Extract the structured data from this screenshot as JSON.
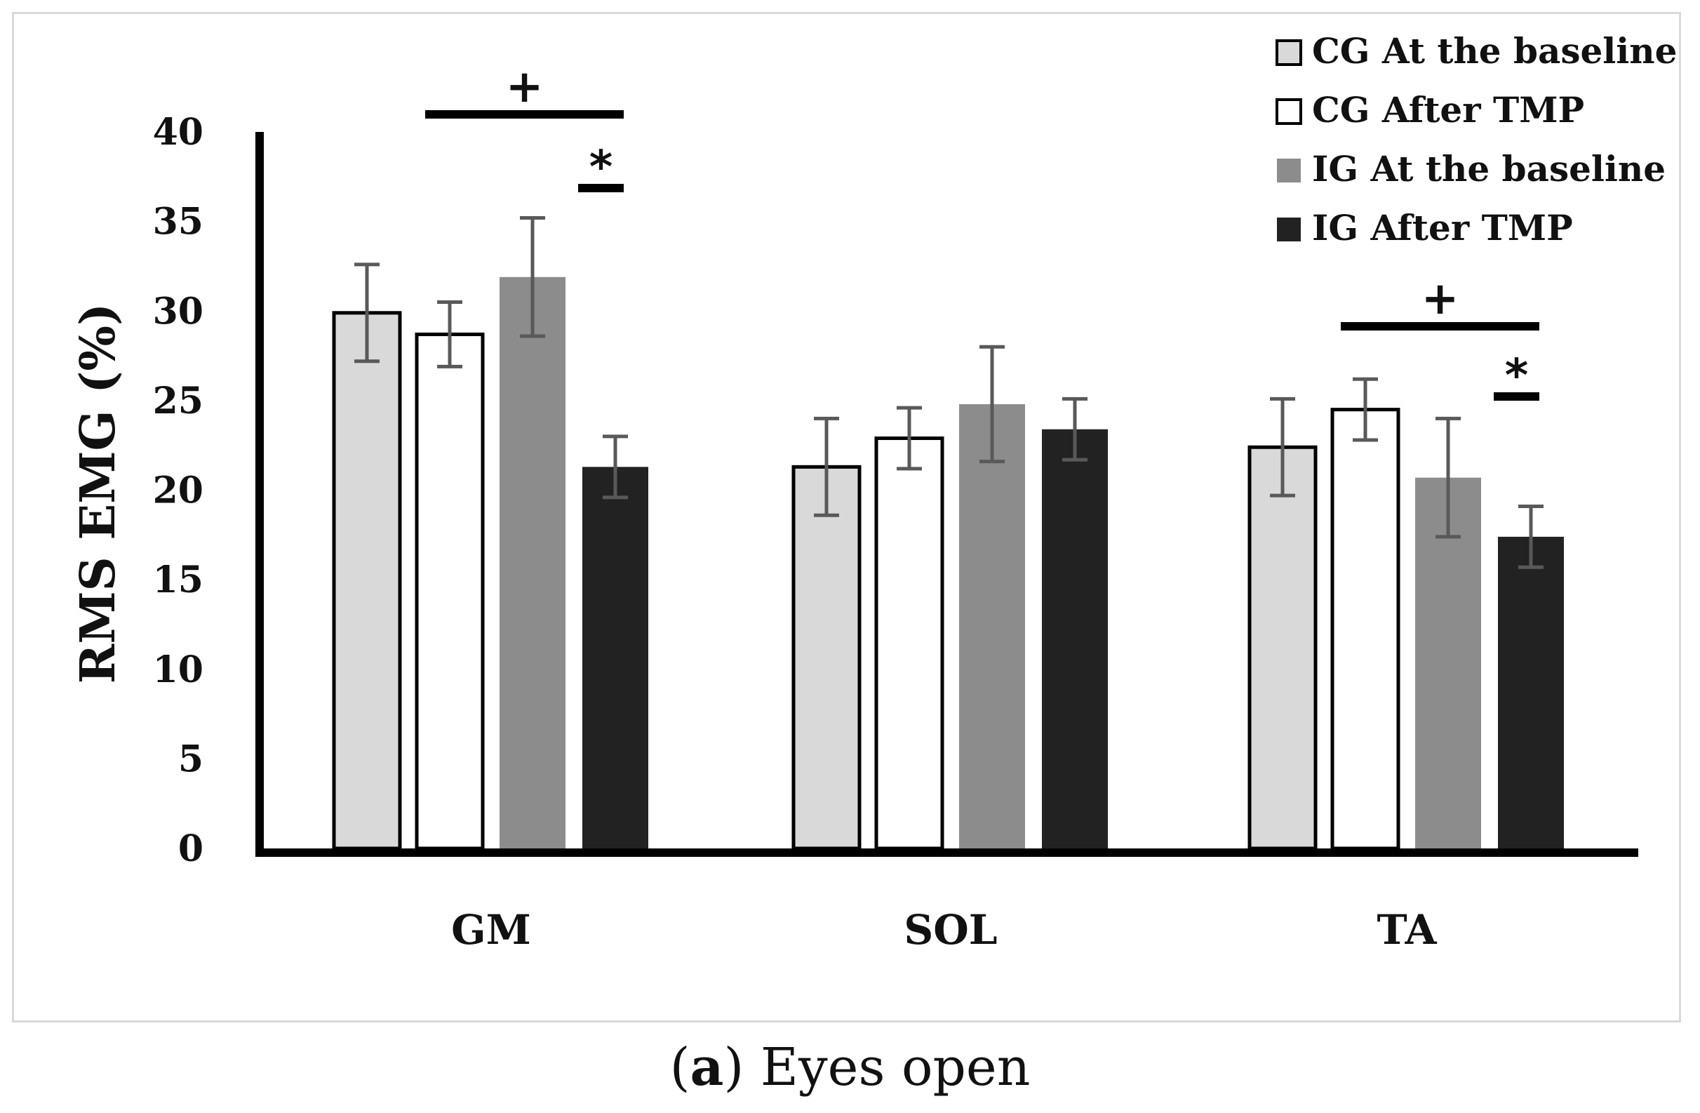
{
  "chart_data": {
    "type": "bar",
    "title": "",
    "xlabel": "",
    "ylabel": "RMS EMG (%)",
    "ylim": [
      0,
      40
    ],
    "yticks": [
      0,
      5,
      10,
      15,
      20,
      25,
      30,
      35,
      40
    ],
    "categories": [
      "GM",
      "SOL",
      "TA"
    ],
    "series": [
      {
        "name": "CG At the baseline",
        "color": "#d9d9d9",
        "stroke": "#000000",
        "values": [
          29.9,
          21.3,
          22.4
        ],
        "errors": [
          2.7,
          2.7,
          2.7
        ]
      },
      {
        "name": "CG After TMP",
        "color": "#ffffff",
        "stroke": "#000000",
        "values": [
          28.7,
          22.9,
          24.5
        ],
        "errors": [
          1.8,
          1.7,
          1.7
        ]
      },
      {
        "name": "IG At the baseline",
        "color": "#8c8c8c",
        "stroke": "none",
        "values": [
          31.9,
          24.8,
          20.7
        ],
        "errors": [
          3.3,
          3.2,
          3.3
        ]
      },
      {
        "name": "IG After TMP",
        "color": "#222222",
        "stroke": "none",
        "values": [
          21.3,
          23.4,
          17.4
        ],
        "errors": [
          1.7,
          1.7,
          1.7
        ]
      }
    ],
    "significance": [
      {
        "category": "GM",
        "from_series": 1,
        "to_series": 3,
        "symbol": "+"
      },
      {
        "category": "GM",
        "from_series": 2,
        "to_series": 3,
        "symbol": "*"
      },
      {
        "category": "TA",
        "from_series": 1,
        "to_series": 3,
        "symbol": "+"
      },
      {
        "category": "TA",
        "from_series": 2,
        "to_series": 3,
        "symbol": "*"
      }
    ],
    "legend_position": "top-right"
  },
  "caption": {
    "letter": "a",
    "text": "Eyes open"
  }
}
